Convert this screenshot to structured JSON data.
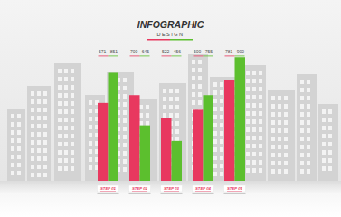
{
  "chart_data": {
    "type": "bar",
    "title": "INFOGRAPHIC",
    "subtitle": "DESIGN",
    "categories": [
      "STEP 01",
      "STEP 02",
      "STEP 03",
      "STEP 04",
      "STEP 05"
    ],
    "annotations": [
      "671 - 851",
      "700 - 645",
      "522 - 456",
      "500 - 755",
      "781 - 900"
    ],
    "series": [
      {
        "color": "#e8385f",
        "values": [
          80,
          88,
          65,
          73,
          104
        ]
      },
      {
        "color": "#5cbf2e",
        "values": [
          111,
          57,
          41,
          88,
          127
        ]
      }
    ],
    "ylim": [
      0,
      130
    ],
    "tick_labels": false,
    "grid": false
  }
}
